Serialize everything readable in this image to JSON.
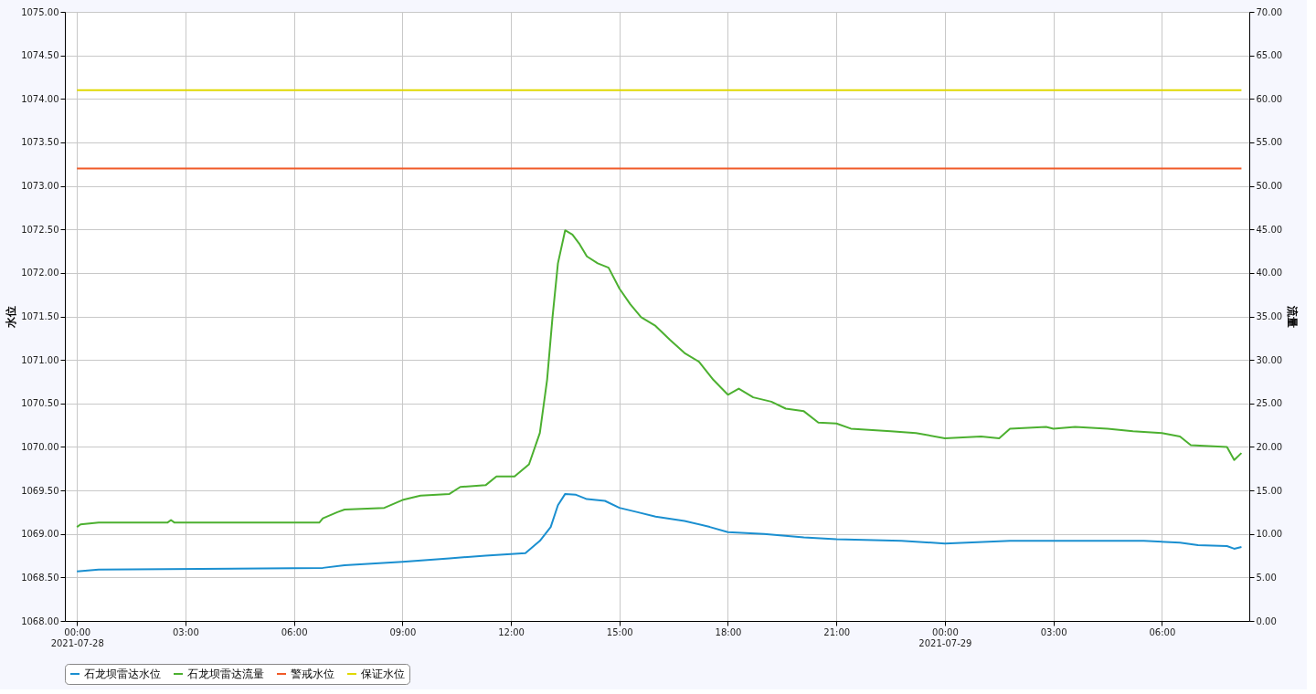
{
  "chart_data": {
    "type": "line",
    "ylabel": "水位",
    "y2label": "流量",
    "xlim": [
      "2021-07-27T23:40",
      "2021-07-29T08:25"
    ],
    "xticks": [
      {
        "value": "2021-07-28T00:00",
        "label": "00:00\n2021-07-28"
      },
      {
        "value": "2021-07-28T03:00",
        "label": "03:00"
      },
      {
        "value": "2021-07-28T06:00",
        "label": "06:00"
      },
      {
        "value": "2021-07-28T09:00",
        "label": "09:00"
      },
      {
        "value": "2021-07-28T12:00",
        "label": "12:00"
      },
      {
        "value": "2021-07-28T15:00",
        "label": "15:00"
      },
      {
        "value": "2021-07-28T18:00",
        "label": "18:00"
      },
      {
        "value": "2021-07-28T21:00",
        "label": "21:00"
      },
      {
        "value": "2021-07-29T00:00",
        "label": "00:00\n2021-07-29"
      },
      {
        "value": "2021-07-29T03:00",
        "label": "03:00"
      },
      {
        "value": "2021-07-29T06:00",
        "label": "06:00"
      }
    ],
    "ylim": [
      1068,
      1075
    ],
    "yticks": [
      {
        "value": 1068,
        "label": "1068.00"
      },
      {
        "value": 1068.5,
        "label": "1068.50"
      },
      {
        "value": 1069,
        "label": "1069.00"
      },
      {
        "value": 1069.5,
        "label": "1069.50"
      },
      {
        "value": 1070,
        "label": "1070.00"
      },
      {
        "value": 1070.5,
        "label": "1070.50"
      },
      {
        "value": 1071,
        "label": "1071.00"
      },
      {
        "value": 1071.5,
        "label": "1071.50"
      },
      {
        "value": 1072,
        "label": "1072.00"
      },
      {
        "value": 1072.5,
        "label": "1072.50"
      },
      {
        "value": 1073,
        "label": "1073.00"
      },
      {
        "value": 1073.5,
        "label": "1073.50"
      },
      {
        "value": 1074,
        "label": "1074.00"
      },
      {
        "value": 1074.5,
        "label": "1074.50"
      },
      {
        "value": 1075,
        "label": "1075.00"
      }
    ],
    "y2lim": [
      0,
      70
    ],
    "y2ticks": [
      {
        "value": 0,
        "label": "0.00"
      },
      {
        "value": 5,
        "label": "5.00"
      },
      {
        "value": 10,
        "label": "10.00"
      },
      {
        "value": 15,
        "label": "15.00"
      },
      {
        "value": 20,
        "label": "20.00"
      },
      {
        "value": 25,
        "label": "25.00"
      },
      {
        "value": 30,
        "label": "30.00"
      },
      {
        "value": 35,
        "label": "35.00"
      },
      {
        "value": 40,
        "label": "40.00"
      },
      {
        "value": 45,
        "label": "45.00"
      },
      {
        "value": 50,
        "label": "50.00"
      },
      {
        "value": 55,
        "label": "55.00"
      },
      {
        "value": 60,
        "label": "60.00"
      },
      {
        "value": 65,
        "label": "65.00"
      },
      {
        "value": 70,
        "label": "70.00"
      }
    ],
    "grid": true,
    "legend": "bottom",
    "marker": "none",
    "line_style": "solid",
    "series": [
      {
        "name": "石龙坝雷达水位",
        "color": "#1a8fd0",
        "x": [
          "2021-07-28T00:00",
          "2021-07-28T00:36",
          "2021-07-28T06:48",
          "2021-07-28T07:24",
          "2021-07-28T09:00",
          "2021-07-28T10:18",
          "2021-07-28T11:18",
          "2021-07-28T12:00",
          "2021-07-28T12:24",
          "2021-07-28T12:48",
          "2021-07-28T13:06",
          "2021-07-28T13:18",
          "2021-07-28T13:30",
          "2021-07-28T13:48",
          "2021-07-28T14:06",
          "2021-07-28T14:36",
          "2021-07-28T15:00",
          "2021-07-28T15:30",
          "2021-07-28T16:00",
          "2021-07-28T16:48",
          "2021-07-28T17:30",
          "2021-07-28T18:00",
          "2021-07-28T19:00",
          "2021-07-28T20:06",
          "2021-07-28T21:00",
          "2021-07-28T22:48",
          "2021-07-29T00:00",
          "2021-07-29T01:48",
          "2021-07-29T05:30",
          "2021-07-29T06:30",
          "2021-07-29T07:00",
          "2021-07-29T07:48",
          "2021-07-29T08:00",
          "2021-07-29T08:12"
        ],
        "values": [
          1068.57,
          1068.59,
          1068.61,
          1068.64,
          1068.68,
          1068.72,
          1068.75,
          1068.77,
          1068.78,
          1068.92,
          1069.08,
          1069.33,
          1069.46,
          1069.45,
          1069.4,
          1069.38,
          1069.3,
          1069.25,
          1069.2,
          1069.15,
          1069.08,
          1069.02,
          1069.0,
          1068.96,
          1068.94,
          1068.92,
          1068.89,
          1068.92,
          1068.92,
          1068.9,
          1068.87,
          1068.86,
          1068.83,
          1068.85
        ]
      },
      {
        "name": "石龙坝雷达流量",
        "color": "#4cb030",
        "axis": "y2",
        "x": [
          "2021-07-28T00:00",
          "2021-07-28T00:06",
          "2021-07-28T00:36",
          "2021-07-28T02:30",
          "2021-07-28T02:36",
          "2021-07-28T02:42",
          "2021-07-28T06:42",
          "2021-07-28T06:48",
          "2021-07-28T07:12",
          "2021-07-28T07:24",
          "2021-07-28T08:30",
          "2021-07-28T09:00",
          "2021-07-28T09:30",
          "2021-07-28T10:18",
          "2021-07-28T10:36",
          "2021-07-28T11:18",
          "2021-07-28T11:36",
          "2021-07-28T12:06",
          "2021-07-28T12:30",
          "2021-07-28T12:48",
          "2021-07-28T13:00",
          "2021-07-28T13:09",
          "2021-07-28T13:18",
          "2021-07-28T13:30",
          "2021-07-28T13:42",
          "2021-07-28T13:54",
          "2021-07-28T14:06",
          "2021-07-28T14:24",
          "2021-07-28T14:42",
          "2021-07-28T15:00",
          "2021-07-28T15:18",
          "2021-07-28T15:36",
          "2021-07-28T16:00",
          "2021-07-28T16:24",
          "2021-07-28T16:48",
          "2021-07-28T17:12",
          "2021-07-28T17:36",
          "2021-07-28T18:00",
          "2021-07-28T18:18",
          "2021-07-28T18:42",
          "2021-07-28T19:12",
          "2021-07-28T19:36",
          "2021-07-28T20:06",
          "2021-07-28T20:30",
          "2021-07-28T21:00",
          "2021-07-28T21:24",
          "2021-07-28T22:30",
          "2021-07-28T23:12",
          "2021-07-29T00:00",
          "2021-07-29T01:00",
          "2021-07-29T01:30",
          "2021-07-29T01:48",
          "2021-07-29T02:48",
          "2021-07-29T03:00",
          "2021-07-29T03:36",
          "2021-07-29T04:30",
          "2021-07-29T05:12",
          "2021-07-29T06:00",
          "2021-07-29T06:30",
          "2021-07-29T06:48",
          "2021-07-29T07:48",
          "2021-07-29T08:00",
          "2021-07-29T08:12"
        ],
        "values": [
          10.8,
          11.1,
          11.3,
          11.3,
          11.6,
          11.3,
          11.3,
          11.8,
          12.5,
          12.8,
          13.0,
          13.9,
          14.4,
          14.6,
          15.4,
          15.6,
          16.6,
          16.6,
          18.0,
          21.6,
          27.7,
          34.9,
          41.1,
          44.9,
          44.4,
          43.3,
          41.9,
          41.1,
          40.6,
          38.2,
          36.4,
          34.9,
          33.9,
          32.3,
          30.8,
          29.8,
          27.7,
          26.0,
          26.7,
          25.7,
          25.2,
          24.4,
          24.1,
          22.8,
          22.7,
          22.1,
          21.8,
          21.6,
          21.0,
          21.2,
          21.0,
          22.1,
          22.3,
          22.1,
          22.3,
          22.1,
          21.8,
          21.6,
          21.2,
          20.2,
          20.0,
          18.5,
          19.3
        ]
      },
      {
        "name": "警戒水位",
        "color": "#f05a28",
        "x": [
          "2021-07-28T00:00",
          "2021-07-29T08:12"
        ],
        "values": [
          1073.2,
          1073.2
        ]
      },
      {
        "name": "保证水位",
        "color": "#e0d800",
        "x": [
          "2021-07-28T00:00",
          "2021-07-29T08:12"
        ],
        "values": [
          1074.1,
          1074.1
        ]
      }
    ]
  }
}
